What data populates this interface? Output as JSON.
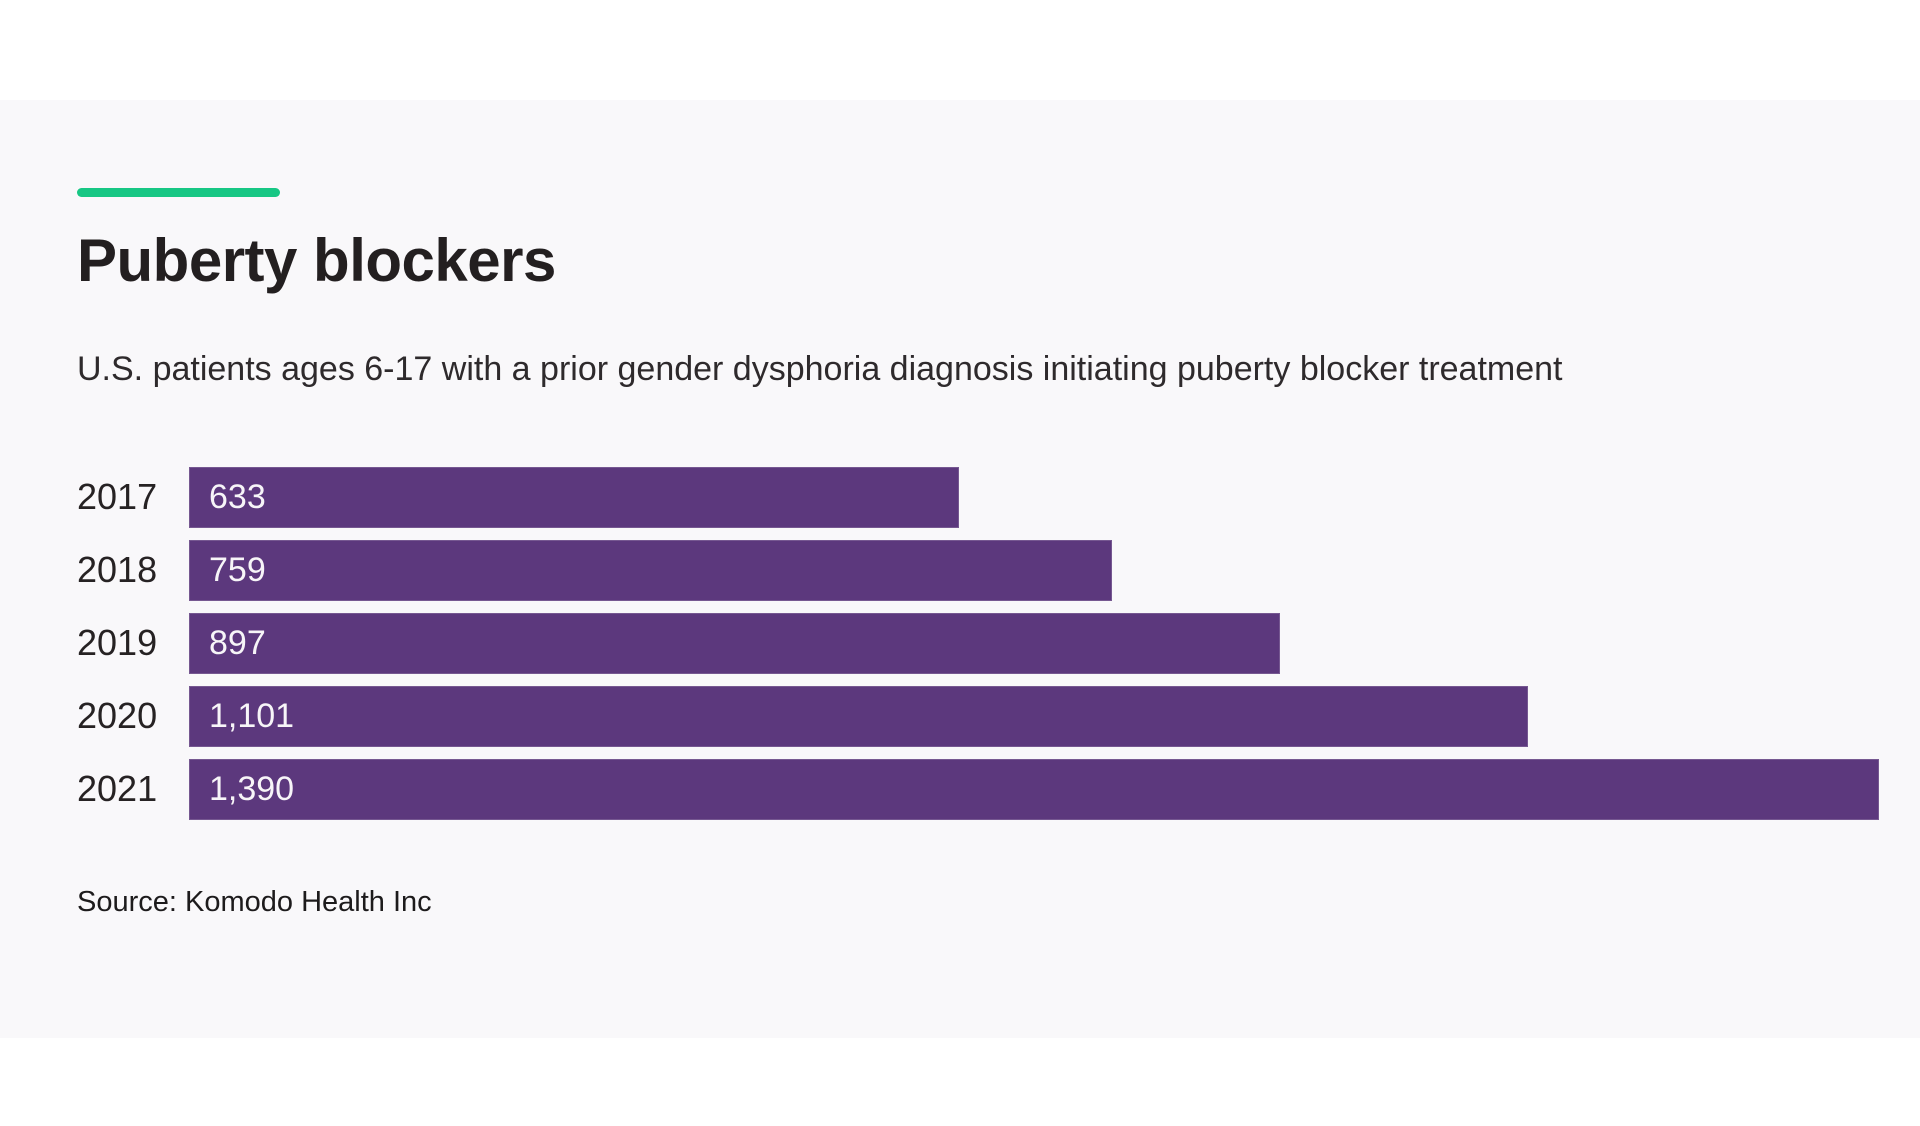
{
  "page": {
    "background": "#ffffff",
    "panel_background": "#f9f8fa"
  },
  "accent": {
    "color": "#17c784"
  },
  "header": {
    "title": "Puberty blockers",
    "subtitle": "U.S. patients ages 6-17 with a prior gender dysphoria diagnosis initiating puberty blocker treatment"
  },
  "source": {
    "label": "Source: Komodo Health Inc"
  },
  "chart_data": {
    "type": "bar",
    "orientation": "horizontal",
    "title": "Puberty blockers",
    "subtitle": "U.S. patients ages 6-17 with a prior gender dysphoria diagnosis initiating puberty blocker treatment",
    "categories": [
      "2017",
      "2018",
      "2019",
      "2020",
      "2021"
    ],
    "values": [
      633,
      759,
      897,
      1101,
      1390
    ],
    "value_labels": [
      "633",
      "759",
      "897",
      "1,101",
      "1,390"
    ],
    "xlabel": "",
    "ylabel": "",
    "xlim": [
      0,
      1390
    ],
    "grid": false,
    "legend": false,
    "bar_color": "#5c387d",
    "value_label_color": "#f7f5f8",
    "category_label_color": "#262223",
    "value_label_position": "inside-left",
    "source": "Source: Komodo Health Inc"
  }
}
